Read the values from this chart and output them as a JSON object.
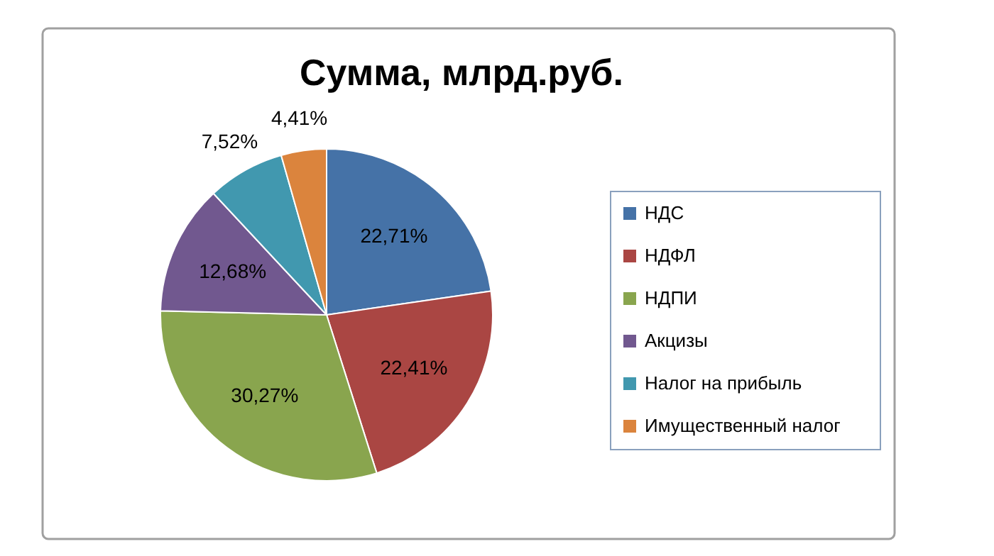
{
  "chart_data": {
    "type": "pie",
    "title": "Сумма, млрд.руб.",
    "categories": [
      "НДС",
      "НДФЛ",
      "НДПИ",
      "Акцизы",
      "Налог на прибыль",
      "Имущественный налог"
    ],
    "values": [
      22.71,
      22.41,
      30.27,
      12.68,
      7.52,
      4.41
    ],
    "colors": [
      "#4572a7",
      "#aa4643",
      "#89a54e",
      "#71588f",
      "#4198af",
      "#db843d"
    ],
    "value_labels": [
      "22,71%",
      "22,41%",
      "30,27%",
      "12,68%",
      "7,52%",
      "4,41%"
    ],
    "legend": "right"
  }
}
